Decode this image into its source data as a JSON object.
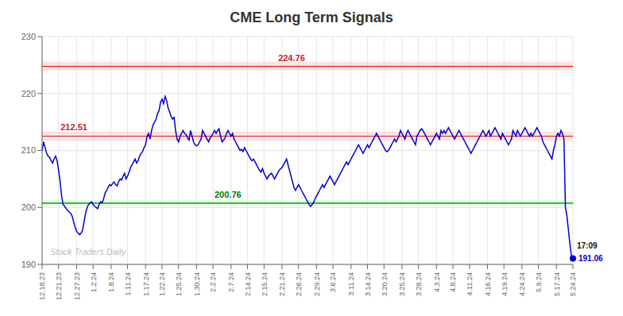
{
  "chart_data": {
    "type": "line",
    "title": "CME Long Term Signals",
    "title_color": "#333333",
    "watermark": "Stock Traders Daily",
    "color": "#0000cc",
    "grid": true,
    "ylim": [
      190,
      230
    ],
    "yticks": [
      190,
      200,
      210,
      220,
      230
    ],
    "reference_lines": [
      {
        "value": 224.76,
        "label": "224.76",
        "color": "#cc2222",
        "band": [
          223.96,
          225.56
        ],
        "band_color": "#ffcccc"
      },
      {
        "value": 212.51,
        "label": "212.51",
        "color": "#cc2222",
        "band": [
          211.71,
          213.31
        ],
        "band_color": "#ffcccc"
      },
      {
        "value": 200.76,
        "label": "200.76",
        "color": "#007700",
        "band": [
          200.26,
          201.26
        ],
        "band_color": "#ccffcc"
      }
    ],
    "end_marker": {
      "label_top": "17:09",
      "label": "191.06"
    },
    "categories": [
      "12.18.23",
      null,
      null,
      null,
      null,
      null,
      null,
      null,
      null,
      null,
      null,
      "12.21.23",
      null,
      null,
      null,
      null,
      null,
      null,
      null,
      null,
      null,
      null,
      null,
      "12.27.23",
      null,
      null,
      null,
      null,
      null,
      null,
      null,
      null,
      null,
      null,
      "1.2.24",
      null,
      null,
      null,
      null,
      null,
      null,
      null,
      null,
      null,
      null,
      null,
      "1.8.24",
      null,
      null,
      null,
      null,
      null,
      null,
      null,
      null,
      null,
      null,
      "1.11.24",
      null,
      null,
      null,
      null,
      null,
      null,
      null,
      null,
      null,
      null,
      null,
      "1.17.24",
      null,
      null,
      null,
      null,
      null,
      null,
      null,
      null,
      null,
      null,
      "1.22.24",
      null,
      null,
      null,
      null,
      null,
      null,
      null,
      null,
      null,
      null,
      "1.25.24",
      null,
      null,
      null,
      null,
      null,
      null,
      null,
      null,
      null,
      null,
      null,
      "1.30.24",
      null,
      null,
      null,
      null,
      null,
      null,
      null,
      null,
      null,
      null,
      "2.2.24",
      null,
      null,
      null,
      null,
      null,
      null,
      null,
      null,
      null,
      null,
      null,
      "2.7.24",
      null,
      null,
      null,
      null,
      null,
      null,
      null,
      null,
      null,
      null,
      "2.14.24",
      null,
      null,
      null,
      null,
      null,
      null,
      null,
      null,
      null,
      null,
      "2.15.24",
      null,
      null,
      null,
      null,
      null,
      null,
      null,
      null,
      null,
      null,
      null,
      "2.21.24",
      null,
      null,
      null,
      null,
      null,
      null,
      null,
      null,
      null,
      null,
      "2.26.24",
      null,
      null,
      null,
      null,
      null,
      null,
      null,
      null,
      null,
      null,
      null,
      "2.29.24",
      null,
      null,
      null,
      null,
      null,
      null,
      null,
      null,
      null,
      null,
      "3.6.24",
      null,
      null,
      null,
      null,
      null,
      null,
      null,
      null,
      null,
      null,
      null,
      "3.11.24",
      null,
      null,
      null,
      null,
      null,
      null,
      null,
      null,
      null,
      null,
      "3.14.24",
      null,
      null,
      null,
      null,
      null,
      null,
      null,
      null,
      null,
      null,
      "3.20.24",
      null,
      null,
      null,
      null,
      null,
      null,
      null,
      null,
      null,
      null,
      null,
      "3.25.24",
      null,
      null,
      null,
      null,
      null,
      null,
      null,
      null,
      null,
      null,
      "3.28.24",
      null,
      null,
      null,
      null,
      null,
      null,
      null,
      null,
      null,
      null,
      null,
      "4.3.24",
      null,
      null,
      null,
      null,
      null,
      null,
      null,
      null,
      null,
      null,
      "4.8.24",
      null,
      null,
      null,
      null,
      null,
      null,
      null,
      null,
      null,
      null,
      "4.11.24",
      null,
      null,
      null,
      null,
      null,
      null,
      null,
      null,
      null,
      null,
      null,
      "4.16.24",
      null,
      null,
      null,
      null,
      null,
      null,
      null,
      null,
      null,
      null,
      "4.19.24",
      null,
      null,
      null,
      null,
      null,
      null,
      null,
      null,
      null,
      null,
      null,
      "4.24.24",
      null,
      null,
      null,
      null,
      null,
      null,
      null,
      null,
      null,
      null,
      "5.9.24",
      null,
      null,
      null,
      null,
      null,
      null,
      null,
      null,
      null,
      null,
      null,
      "5.17.24",
      null,
      null,
      null,
      null,
      null,
      null,
      null,
      null,
      null,
      null,
      "5.24.24"
    ],
    "values": [
      210.0,
      211.5,
      210.5,
      209.5,
      209.0,
      208.8,
      208.2,
      207.8,
      208.5,
      209.0,
      208.2,
      206.5,
      204.5,
      202.0,
      200.5,
      200.2,
      199.8,
      199.5,
      199.2,
      199.0,
      198.5,
      197.5,
      196.5,
      195.8,
      195.5,
      195.2,
      195.5,
      196.0,
      197.5,
      199.0,
      200.0,
      200.5,
      200.8,
      201.0,
      200.5,
      200.2,
      200.0,
      199.8,
      200.5,
      201.0,
      200.8,
      201.5,
      202.5,
      203.0,
      203.5,
      204.0,
      203.8,
      204.2,
      204.5,
      204.0,
      203.8,
      204.5,
      205.0,
      204.8,
      205.5,
      206.0,
      205.0,
      205.5,
      206.2,
      207.0,
      207.5,
      208.0,
      208.5,
      207.8,
      208.2,
      209.0,
      209.5,
      209.8,
      210.5,
      211.0,
      212.5,
      213.0,
      212.0,
      213.5,
      214.5,
      215.0,
      215.5,
      216.5,
      217.0,
      218.5,
      219.0,
      218.2,
      219.5,
      218.8,
      217.5,
      216.8,
      216.0,
      215.5,
      215.8,
      213.5,
      212.0,
      211.5,
      212.5,
      213.0,
      213.5,
      213.0,
      212.8,
      212.2,
      211.8,
      213.5,
      212.5,
      211.5,
      211.0,
      210.8,
      211.0,
      211.5,
      212.0,
      213.5,
      213.0,
      212.5,
      212.0,
      211.5,
      212.2,
      212.5,
      213.0,
      213.5,
      213.0,
      213.5,
      213.8,
      212.5,
      211.5,
      211.8,
      212.2,
      213.0,
      213.5,
      213.0,
      212.5,
      213.0,
      212.0,
      211.5,
      211.0,
      210.5,
      210.0,
      210.2,
      209.8,
      210.5,
      210.0,
      209.5,
      209.0,
      208.5,
      208.2,
      208.5,
      208.0,
      207.5,
      207.0,
      206.5,
      206.2,
      206.8,
      206.0,
      205.5,
      205.0,
      205.5,
      205.8,
      206.0,
      205.5,
      205.0,
      205.5,
      206.0,
      206.5,
      206.8,
      207.0,
      207.5,
      208.0,
      208.5,
      207.5,
      206.5,
      205.5,
      204.5,
      203.5,
      203.0,
      203.5,
      204.0,
      203.5,
      203.0,
      202.5,
      202.0,
      201.5,
      201.0,
      200.5,
      200.2,
      200.5,
      200.8,
      201.5,
      202.0,
      202.5,
      203.0,
      203.5,
      204.0,
      203.5,
      204.0,
      204.5,
      205.0,
      205.5,
      205.0,
      204.5,
      204.0,
      204.5,
      205.0,
      205.5,
      206.0,
      206.5,
      207.0,
      207.5,
      208.0,
      207.5,
      208.0,
      208.5,
      209.0,
      209.5,
      210.0,
      210.5,
      211.0,
      210.5,
      210.0,
      209.5,
      210.0,
      210.5,
      211.0,
      210.5,
      211.0,
      211.5,
      212.0,
      212.5,
      213.0,
      212.5,
      212.0,
      211.5,
      211.0,
      210.5,
      210.0,
      209.8,
      210.0,
      210.5,
      211.0,
      211.5,
      212.0,
      211.5,
      212.0,
      212.5,
      213.5,
      213.0,
      212.5,
      212.0,
      213.0,
      213.5,
      213.0,
      212.5,
      212.0,
      211.5,
      211.0,
      212.5,
      213.0,
      213.5,
      213.8,
      213.5,
      213.0,
      212.5,
      212.0,
      211.5,
      211.0,
      211.5,
      212.0,
      212.5,
      213.0,
      212.5,
      212.0,
      213.5,
      213.0,
      213.5,
      213.0,
      213.5,
      214.0,
      213.5,
      213.0,
      212.5,
      212.0,
      212.5,
      213.0,
      213.5,
      213.0,
      212.5,
      212.0,
      211.5,
      211.0,
      210.5,
      210.0,
      209.5,
      210.0,
      210.5,
      211.0,
      211.5,
      212.0,
      212.5,
      213.0,
      213.5,
      213.0,
      212.5,
      213.0,
      213.5,
      212.5,
      213.0,
      213.5,
      214.0,
      213.5,
      213.0,
      212.5,
      212.0,
      213.0,
      212.5,
      212.0,
      211.5,
      211.0,
      211.5,
      212.0,
      213.5,
      213.0,
      212.5,
      213.5,
      213.0,
      212.5,
      213.0,
      213.5,
      214.0,
      213.5,
      213.0,
      212.5,
      213.0,
      212.5,
      213.0,
      213.5,
      214.0,
      213.5,
      213.0,
      212.5,
      211.5,
      211.0,
      210.5,
      210.0,
      209.5,
      209.0,
      208.5,
      210.0,
      211.0,
      212.5,
      213.0,
      212.5,
      213.5,
      213.0,
      212.0,
      200.0,
      198.5,
      196.0,
      193.5,
      191.5,
      191.06
    ]
  }
}
